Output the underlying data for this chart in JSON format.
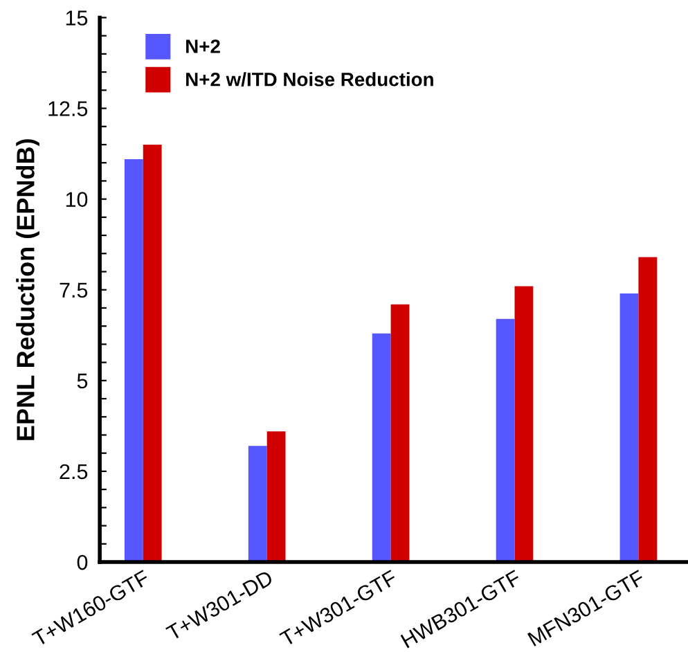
{
  "chart_data": {
    "type": "bar",
    "ylabel": "EPNL Reduction (EPNdB)",
    "categories": [
      "T+W160-GTF",
      "T+W301-DD",
      "T+W301-GTF",
      "HWB301-GTF",
      "MFN301-GTF"
    ],
    "series": [
      {
        "name": "N+2",
        "color": "#5757ff",
        "values": [
          11.1,
          3.2,
          6.3,
          6.7,
          7.4
        ]
      },
      {
        "name": "N+2 w/ITD Noise Reduction",
        "color": "#d00000",
        "values": [
          11.5,
          3.6,
          7.1,
          7.6,
          8.4
        ]
      }
    ],
    "ylim": [
      0,
      15
    ],
    "yticks": [
      0,
      {
        "value": 0.5,
        "label": null
      },
      {
        "value": 1,
        "label": null
      },
      {
        "value": 1.5,
        "label": null
      },
      {
        "value": 2,
        "label": null
      },
      2.5,
      {
        "value": 3,
        "label": null
      },
      {
        "value": 3.5,
        "label": null
      },
      {
        "value": 4,
        "label": null
      },
      {
        "value": 4.5,
        "label": null
      },
      5,
      {
        "value": 5.5,
        "label": null
      },
      {
        "value": 6,
        "label": null
      },
      {
        "value": 6.5,
        "label": null
      },
      {
        "value": 7,
        "label": null
      },
      7.5,
      {
        "value": 8,
        "label": null
      },
      {
        "value": 8.5,
        "label": null
      },
      {
        "value": 9,
        "label": null
      },
      {
        "value": 9.5,
        "label": null
      },
      10,
      {
        "value": 10.5,
        "label": null
      },
      {
        "value": 11,
        "label": null
      },
      {
        "value": 11.5,
        "label": null
      },
      {
        "value": 12,
        "label": null
      },
      12.5,
      {
        "value": 13,
        "label": null
      },
      {
        "value": 13.5,
        "label": null
      },
      {
        "value": 14,
        "label": null
      },
      {
        "value": 14.5,
        "label": null
      },
      15
    ],
    "grid": false,
    "legend": "top left"
  }
}
